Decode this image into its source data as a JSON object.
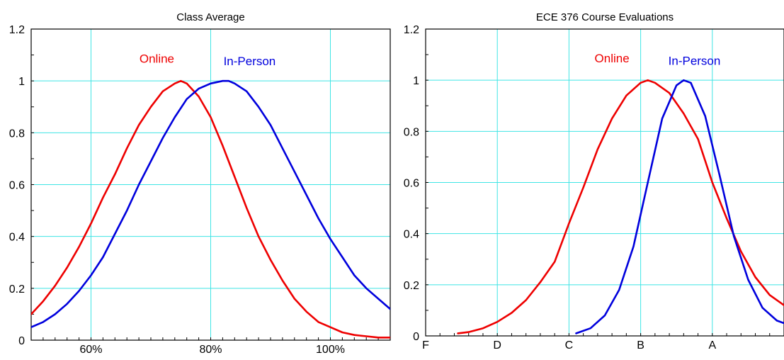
{
  "chart_data": [
    {
      "type": "line",
      "title": "Class Average",
      "xlabel": "",
      "ylabel": "",
      "xlim": [
        50,
        110
      ],
      "ylim": [
        0,
        1.2
      ],
      "x_ticks": [
        {
          "value": 60,
          "label": "60%"
        },
        {
          "value": 80,
          "label": "80%"
        },
        {
          "value": 100,
          "label": "100%"
        }
      ],
      "y_ticks": [
        {
          "value": 0,
          "label": "0"
        },
        {
          "value": 0.2,
          "label": "0.2"
        },
        {
          "value": 0.4,
          "label": "0.4"
        },
        {
          "value": 0.6,
          "label": "0.6"
        },
        {
          "value": 0.8,
          "label": "0.8"
        },
        {
          "value": 1,
          "label": "1"
        },
        {
          "value": 1.2,
          "label": "1.2"
        }
      ],
      "grid": true,
      "series": [
        {
          "name": "Online",
          "color": "#ee0000",
          "x": [
            50,
            52,
            54,
            56,
            58,
            60,
            62,
            64,
            66,
            68,
            70,
            72,
            74,
            75,
            76,
            78,
            80,
            82,
            84,
            86,
            88,
            90,
            92,
            94,
            96,
            98,
            100,
            102,
            104,
            106,
            108,
            110
          ],
          "y": [
            0.1,
            0.15,
            0.21,
            0.28,
            0.36,
            0.45,
            0.55,
            0.64,
            0.74,
            0.83,
            0.9,
            0.96,
            0.99,
            1.0,
            0.99,
            0.94,
            0.86,
            0.75,
            0.63,
            0.51,
            0.4,
            0.31,
            0.23,
            0.16,
            0.11,
            0.07,
            0.05,
            0.03,
            0.02,
            0.015,
            0.01,
            0.01
          ]
        },
        {
          "name": "In-Person",
          "color": "#0000dd",
          "x": [
            50,
            52,
            54,
            56,
            58,
            60,
            62,
            64,
            66,
            68,
            70,
            72,
            74,
            76,
            78,
            80,
            82,
            83,
            84,
            86,
            88,
            90,
            92,
            94,
            96,
            98,
            100,
            102,
            104,
            106,
            108,
            110
          ],
          "y": [
            0.05,
            0.07,
            0.1,
            0.14,
            0.19,
            0.25,
            0.32,
            0.41,
            0.5,
            0.6,
            0.69,
            0.78,
            0.86,
            0.93,
            0.97,
            0.99,
            1.0,
            1.0,
            0.99,
            0.96,
            0.9,
            0.83,
            0.74,
            0.65,
            0.56,
            0.47,
            0.39,
            0.32,
            0.25,
            0.2,
            0.16,
            0.12
          ]
        }
      ],
      "annotations": [
        {
          "text": "Online",
          "x": 71,
          "y": 1.07,
          "color": "#ee0000"
        },
        {
          "text": "In-Person",
          "x": 86.5,
          "y": 1.06,
          "color": "#0000dd"
        }
      ]
    },
    {
      "type": "line",
      "title": "ECE 376 Course Evaluations",
      "xlabel": "",
      "ylabel": "",
      "xlim": [
        0,
        5
      ],
      "ylim": [
        0,
        1.2
      ],
      "x_ticks": [
        {
          "value": 0,
          "label": "F"
        },
        {
          "value": 1,
          "label": "D"
        },
        {
          "value": 2,
          "label": "C"
        },
        {
          "value": 3,
          "label": "B"
        },
        {
          "value": 4,
          "label": "A"
        }
      ],
      "y_ticks": [
        {
          "value": 0,
          "label": "0"
        },
        {
          "value": 0.2,
          "label": "0.2"
        },
        {
          "value": 0.4,
          "label": "0.4"
        },
        {
          "value": 0.6,
          "label": "0.6"
        },
        {
          "value": 0.8,
          "label": "0.8"
        },
        {
          "value": 1,
          "label": "1"
        },
        {
          "value": 1.2,
          "label": "1.2"
        }
      ],
      "grid": true,
      "series": [
        {
          "name": "Online",
          "color": "#ee0000",
          "x": [
            0.45,
            0.6,
            0.8,
            1.0,
            1.2,
            1.4,
            1.6,
            1.8,
            2.0,
            2.2,
            2.4,
            2.6,
            2.8,
            3.0,
            3.1,
            3.2,
            3.4,
            3.6,
            3.8,
            4.0,
            4.2,
            4.4,
            4.6,
            4.8,
            5.0
          ],
          "y": [
            0.01,
            0.015,
            0.03,
            0.055,
            0.09,
            0.14,
            0.21,
            0.29,
            0.44,
            0.58,
            0.73,
            0.85,
            0.94,
            0.99,
            1.0,
            0.99,
            0.95,
            0.87,
            0.77,
            0.6,
            0.46,
            0.33,
            0.23,
            0.16,
            0.12
          ]
        },
        {
          "name": "In-Person",
          "color": "#0000dd",
          "x": [
            2.1,
            2.3,
            2.5,
            2.7,
            2.9,
            3.1,
            3.3,
            3.5,
            3.6,
            3.7,
            3.9,
            4.1,
            4.3,
            4.5,
            4.7,
            4.9,
            5.0
          ],
          "y": [
            0.01,
            0.03,
            0.08,
            0.18,
            0.35,
            0.6,
            0.85,
            0.98,
            1.0,
            0.99,
            0.86,
            0.63,
            0.39,
            0.22,
            0.11,
            0.06,
            0.05
          ]
        }
      ],
      "annotations": [
        {
          "text": "Online",
          "x": 2.6,
          "y": 1.07,
          "color": "#ee0000"
        },
        {
          "text": "In-Person",
          "x": 3.75,
          "y": 1.06,
          "color": "#0000dd"
        }
      ]
    }
  ]
}
